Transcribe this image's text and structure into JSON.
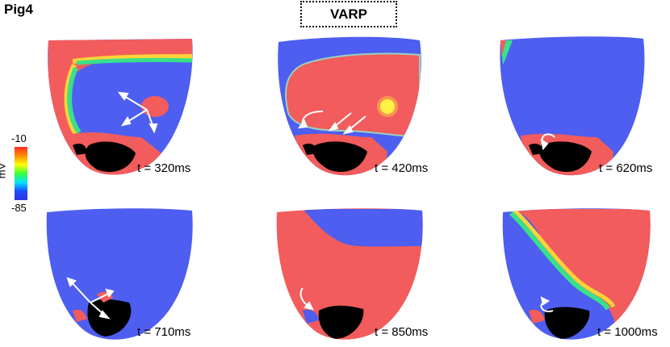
{
  "figure": {
    "subject_label": "Pig4",
    "method_label": "VARP",
    "colorbar": {
      "max_label": "-10",
      "min_label": "-85",
      "unit": "mV",
      "colors": [
        "#ff2b2b",
        "#ff8c00",
        "#ffff00",
        "#39ff39",
        "#00e5ff",
        "#1a4dff",
        "#3333dd"
      ]
    },
    "panels": [
      {
        "time_label": "t = 320ms"
      },
      {
        "time_label": "t = 420ms"
      },
      {
        "time_label": "t = 620ms"
      },
      {
        "time_label": "t = 710ms"
      },
      {
        "time_label": "t = 850ms"
      },
      {
        "time_label": "t = 1000ms"
      }
    ],
    "colors": {
      "resting": "#4d5ef0",
      "depolarized": "#f25c5c",
      "scar": "#000000",
      "arrow": "#ffffff"
    }
  }
}
